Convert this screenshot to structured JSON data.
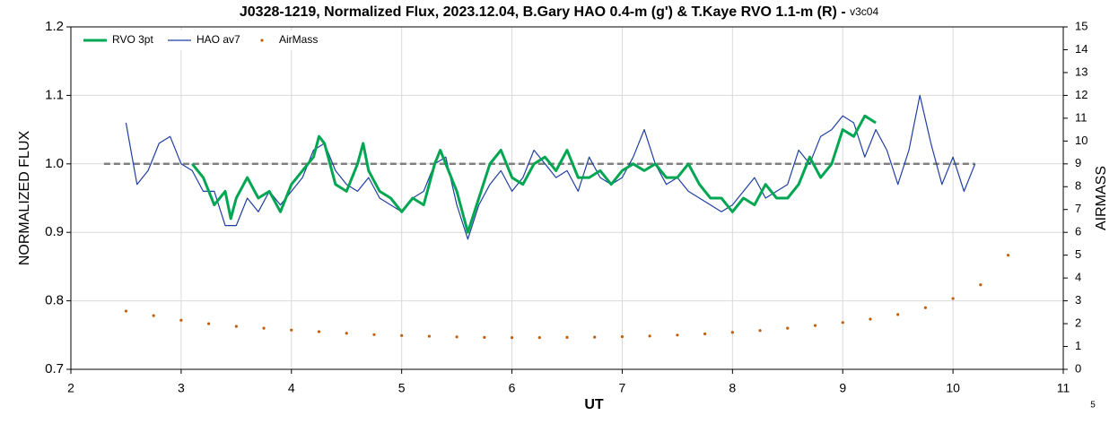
{
  "chart_data": {
    "type": "line",
    "title": "J0328-1219, Normalized Flux, 2023.12.04, B.Gary HAO 0.4-m (g') & T.Kaye RVO 1.1-m (R) - ",
    "subtitle": "v3c04",
    "xlabel": "UT",
    "ylabel": "NORMALIZED FLUX",
    "y2label": "AIRMASS",
    "page_number": "5",
    "xlim": [
      2,
      11
    ],
    "xticks": [
      2,
      3,
      4,
      5,
      6,
      7,
      8,
      9,
      10,
      11
    ],
    "ylim": [
      0.7,
      1.2
    ],
    "yticks": [
      0.7,
      0.8,
      0.9,
      {
        "value": 1,
        "label": "1.0"
      },
      1.1,
      1.2
    ],
    "y2lim": [
      0,
      15
    ],
    "y2ticks": [
      0,
      1,
      2,
      3,
      4,
      5,
      6,
      7,
      8,
      9,
      10,
      11,
      12,
      13,
      14,
      15
    ],
    "grid": true,
    "legend": "top-left",
    "reference_line": {
      "y": 1,
      "x": [
        2.3,
        10.2
      ],
      "color": "#808080"
    },
    "series": [
      {
        "name": "RVO 3pt",
        "color": "#00a651",
        "style": "line",
        "x": [
          3.1,
          3.2,
          3.3,
          3.4,
          3.45,
          3.5,
          3.6,
          3.7,
          3.8,
          3.9,
          4.0,
          4.1,
          4.2,
          4.25,
          4.3,
          4.4,
          4.5,
          4.6,
          4.65,
          4.7,
          4.8,
          4.9,
          5.0,
          5.1,
          5.2,
          5.3,
          5.35,
          5.4,
          5.5,
          5.6,
          5.7,
          5.8,
          5.9,
          6.0,
          6.1,
          6.2,
          6.3,
          6.4,
          6.5,
          6.6,
          6.7,
          6.8,
          6.9,
          7.0,
          7.1,
          7.2,
          7.3,
          7.4,
          7.5,
          7.6,
          7.7,
          7.8,
          7.9,
          8.0,
          8.1,
          8.2,
          8.3,
          8.4,
          8.5,
          8.6,
          8.7,
          8.8,
          8.9,
          9.0,
          9.1,
          9.2,
          9.3
        ],
        "values": [
          1.0,
          0.98,
          0.94,
          0.96,
          0.92,
          0.95,
          0.98,
          0.95,
          0.96,
          0.93,
          0.97,
          0.99,
          1.01,
          1.04,
          1.03,
          0.97,
          0.96,
          1.0,
          1.03,
          0.99,
          0.96,
          0.95,
          0.93,
          0.95,
          0.94,
          1.0,
          1.02,
          1.0,
          0.96,
          0.9,
          0.95,
          1.0,
          1.02,
          0.98,
          0.97,
          1.0,
          1.01,
          0.99,
          1.02,
          0.98,
          0.98,
          0.99,
          0.97,
          0.99,
          1.0,
          0.99,
          1.0,
          0.98,
          0.98,
          1.0,
          0.97,
          0.95,
          0.95,
          0.93,
          0.95,
          0.94,
          0.97,
          0.95,
          0.95,
          0.97,
          1.01,
          0.98,
          1.0,
          1.05,
          1.04,
          1.07,
          1.06
        ]
      },
      {
        "name": "HAO av7",
        "color": "#1f3f9f",
        "style": "line",
        "x": [
          2.5,
          2.6,
          2.7,
          2.8,
          2.9,
          3.0,
          3.1,
          3.2,
          3.3,
          3.4,
          3.5,
          3.6,
          3.7,
          3.8,
          3.9,
          4.0,
          4.1,
          4.2,
          4.3,
          4.4,
          4.5,
          4.6,
          4.7,
          4.8,
          4.9,
          5.0,
          5.1,
          5.2,
          5.3,
          5.4,
          5.5,
          5.6,
          5.7,
          5.8,
          5.9,
          6.0,
          6.1,
          6.2,
          6.3,
          6.4,
          6.5,
          6.6,
          6.7,
          6.8,
          6.9,
          7.0,
          7.1,
          7.2,
          7.3,
          7.4,
          7.5,
          7.6,
          7.7,
          7.8,
          7.9,
          8.0,
          8.1,
          8.2,
          8.3,
          8.4,
          8.5,
          8.6,
          8.7,
          8.8,
          8.9,
          9.0,
          9.1,
          9.2,
          9.3,
          9.4,
          9.5,
          9.6,
          9.7,
          9.8,
          9.9,
          10.0,
          10.1,
          10.2
        ],
        "values": [
          1.06,
          0.97,
          0.99,
          1.03,
          1.04,
          1.0,
          0.99,
          0.96,
          0.96,
          0.91,
          0.91,
          0.95,
          0.93,
          0.96,
          0.94,
          0.96,
          0.98,
          1.02,
          1.03,
          0.99,
          0.97,
          0.96,
          0.98,
          0.95,
          0.94,
          0.93,
          0.95,
          0.96,
          1.0,
          1.01,
          0.94,
          0.89,
          0.94,
          0.97,
          0.99,
          0.96,
          0.98,
          1.02,
          1.0,
          0.98,
          0.99,
          0.96,
          1.01,
          0.98,
          0.97,
          0.98,
          1.01,
          1.05,
          1.0,
          0.97,
          0.98,
          0.96,
          0.95,
          0.94,
          0.93,
          0.94,
          0.96,
          0.98,
          0.95,
          0.96,
          0.97,
          1.02,
          1.0,
          1.04,
          1.05,
          1.07,
          1.06,
          1.01,
          1.05,
          1.02,
          0.97,
          1.02,
          1.1,
          1.03,
          0.97,
          1.01,
          0.96,
          1.0
        ]
      },
      {
        "name": "AirMass",
        "color": "#c0600f",
        "style": "dots",
        "axis": "y2",
        "x": [
          2.5,
          2.75,
          3.0,
          3.25,
          3.5,
          3.75,
          4.0,
          4.25,
          4.5,
          4.75,
          5.0,
          5.25,
          5.5,
          5.75,
          6.0,
          6.25,
          6.5,
          6.75,
          7.0,
          7.25,
          7.5,
          7.75,
          8.0,
          8.25,
          8.5,
          8.75,
          9.0,
          9.25,
          9.5,
          9.75,
          10.0,
          10.25,
          10.5
        ],
        "values": [
          2.55,
          2.35,
          2.15,
          2.0,
          1.88,
          1.8,
          1.72,
          1.65,
          1.58,
          1.52,
          1.48,
          1.45,
          1.42,
          1.4,
          1.39,
          1.39,
          1.4,
          1.41,
          1.43,
          1.46,
          1.5,
          1.55,
          1.62,
          1.7,
          1.8,
          1.92,
          2.05,
          2.2,
          2.4,
          2.7,
          3.1,
          3.7,
          5.0
        ]
      }
    ]
  }
}
